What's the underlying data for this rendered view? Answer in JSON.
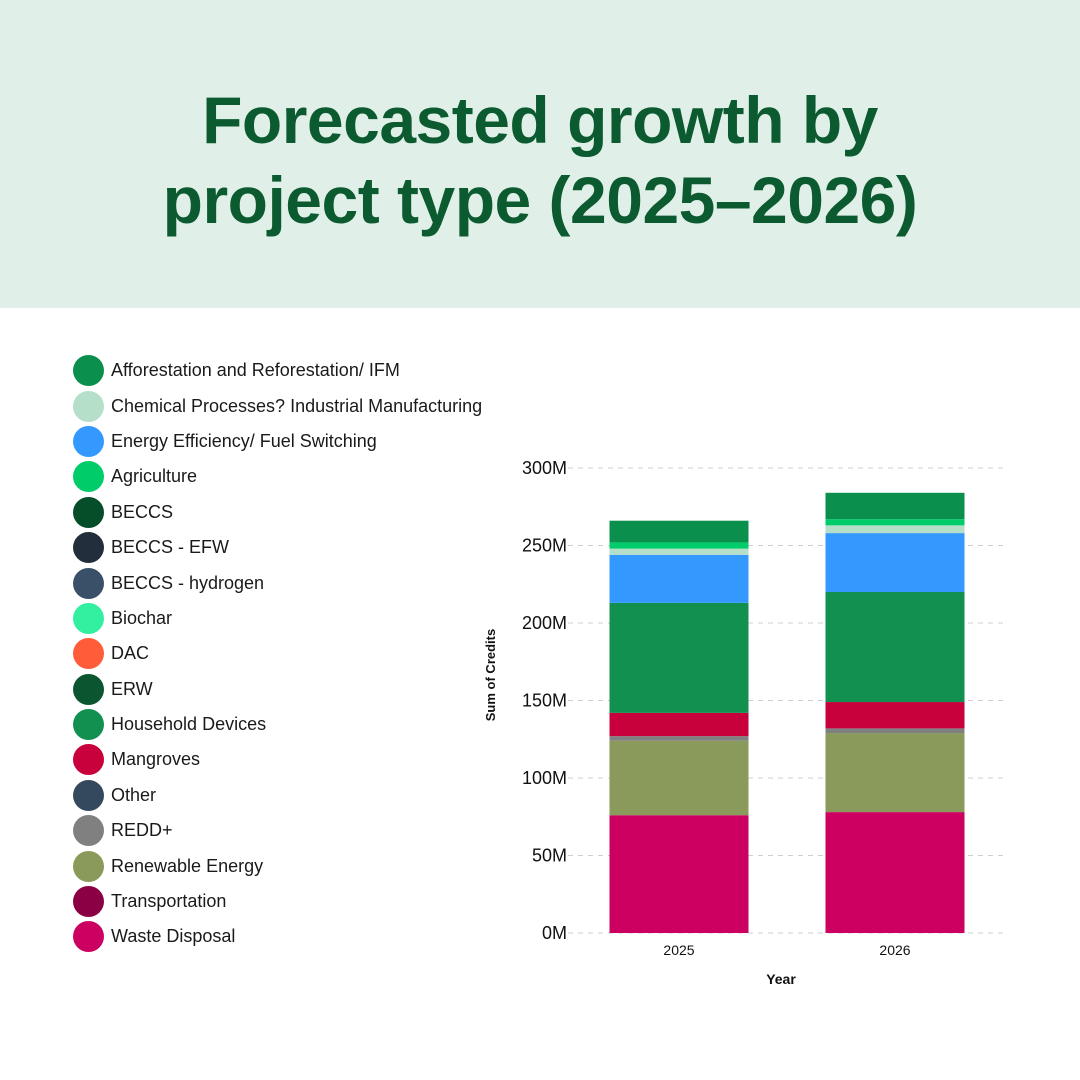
{
  "title_lines": [
    "Forecasted growth by",
    "project type (2025–2026)"
  ],
  "legend": [
    {
      "label": "Afforestation and Reforestation/ IFM",
      "color": "#0b8f4d"
    },
    {
      "label": "Chemical Processes? Industrial Manufacturing",
      "color": "#b5dfc9"
    },
    {
      "label": "Energy Efficiency/ Fuel Switching",
      "color": "#3399ff"
    },
    {
      "label": "Agriculture",
      "color": "#00cc6a"
    },
    {
      "label": "BECCS",
      "color": "#064d2a"
    },
    {
      "label": "BECCS - EFW",
      "color": "#222e3c"
    },
    {
      "label": "BECCS - hydrogen",
      "color": "#3a5068"
    },
    {
      "label": "Biochar",
      "color": "#33f0a0"
    },
    {
      "label": "DAC",
      "color": "#ff5c3a"
    },
    {
      "label": "ERW",
      "color": "#0b5530"
    },
    {
      "label": "Household Devices",
      "color": "#129050"
    },
    {
      "label": "Mangroves",
      "color": "#c8003c"
    },
    {
      "label": "Other",
      "color": "#34495e"
    },
    {
      "label": "REDD+",
      "color": "#808080"
    },
    {
      "label": "Renewable Energy",
      "color": "#8a9a5b"
    },
    {
      "label": "Transportation",
      "color": "#8b0045"
    },
    {
      "label": "Waste Disposal",
      "color": "#cc0060"
    }
  ],
  "chart_data": {
    "type": "bar",
    "stacked": true,
    "xlabel": "Year",
    "ylabel": "Sum of Credits",
    "ylim": [
      0,
      300000000
    ],
    "y_ticks": [
      0,
      50000000,
      100000000,
      150000000,
      200000000,
      250000000,
      300000000
    ],
    "y_tick_labels": [
      "0M",
      "50M",
      "100M",
      "150M",
      "200M",
      "250M",
      "300M"
    ],
    "grid": true,
    "legend_position": "left",
    "categories": [
      "2025",
      "2026"
    ],
    "series": [
      {
        "name": "Waste Disposal",
        "color": "#cc0060",
        "values": [
          76000000,
          78000000
        ]
      },
      {
        "name": "Renewable Energy",
        "color": "#8a9a5b",
        "values": [
          48000000,
          51000000
        ]
      },
      {
        "name": "REDD+",
        "color": "#808080",
        "values": [
          3000000,
          3000000
        ]
      },
      {
        "name": "Mangroves",
        "color": "#c8003c",
        "values": [
          15000000,
          17000000
        ]
      },
      {
        "name": "Household Devices",
        "color": "#129050",
        "values": [
          71000000,
          71000000
        ]
      },
      {
        "name": "Energy Efficiency/ Fuel Switching",
        "color": "#3399ff",
        "values": [
          31000000,
          38000000
        ]
      },
      {
        "name": "Chemical Processes? Industrial Manufacturing",
        "color": "#b5dfc9",
        "values": [
          4000000,
          5000000
        ]
      },
      {
        "name": "Agriculture",
        "color": "#00cc6a",
        "values": [
          4000000,
          4000000
        ]
      },
      {
        "name": "Afforestation and Reforestation/ IFM",
        "color": "#0b8f4d",
        "values": [
          14000000,
          17000000
        ]
      }
    ]
  }
}
